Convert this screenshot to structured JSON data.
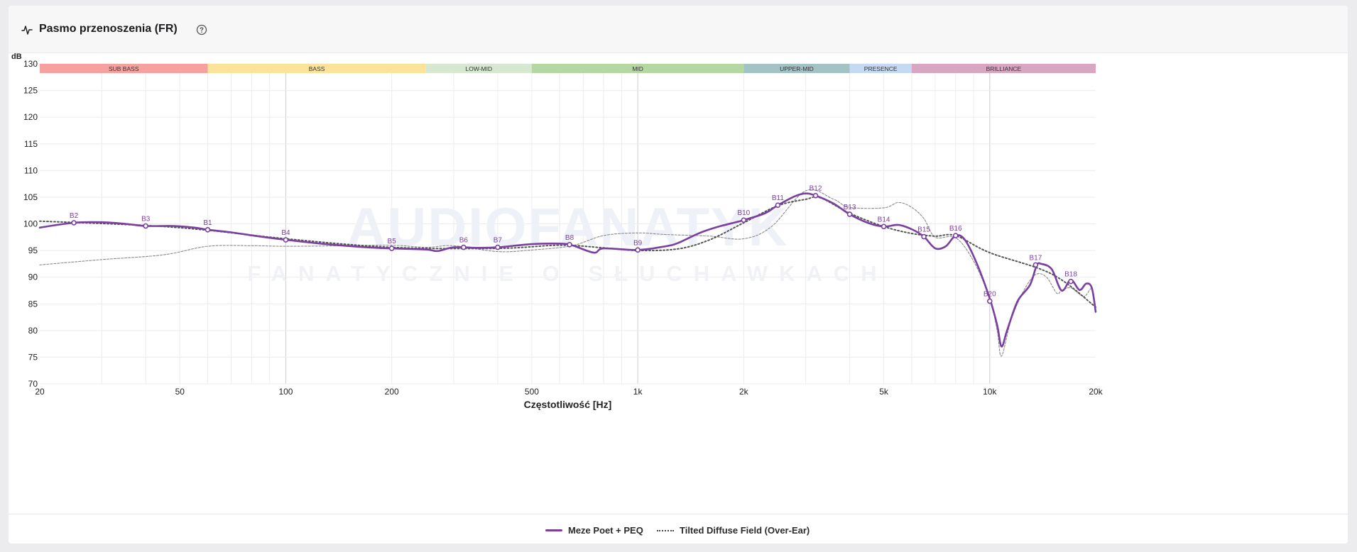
{
  "header": {
    "title": "Pasmo przenoszenia (FR)",
    "icons": [
      "pulse-icon",
      "help-circle-icon"
    ]
  },
  "watermark": {
    "main": "AUDIOFANATYK",
    "sub": "FANATYCZNIE O SŁUCHAWKACH"
  },
  "chart_data": {
    "type": "line",
    "xscale": "log",
    "xlim": [
      20,
      20000
    ],
    "ylim": [
      70,
      130
    ],
    "xlabel": "Częstotliwość [Hz]",
    "ylabel": "dB",
    "yticks": [
      70,
      75,
      80,
      85,
      90,
      95,
      100,
      105,
      110,
      115,
      120,
      125,
      130
    ],
    "xticks": [
      {
        "v": 20,
        "label": "20"
      },
      {
        "v": 50,
        "label": "50"
      },
      {
        "v": 100,
        "label": "100"
      },
      {
        "v": 200,
        "label": "200"
      },
      {
        "v": 500,
        "label": "500"
      },
      {
        "v": 1000,
        "label": "1k"
      },
      {
        "v": 2000,
        "label": "2k"
      },
      {
        "v": 5000,
        "label": "5k"
      },
      {
        "v": 10000,
        "label": "10k"
      },
      {
        "v": 20000,
        "label": "20k"
      }
    ],
    "bands": [
      {
        "label": "SUB BASS",
        "from": 20,
        "to": 60,
        "color": "#f7a0a0"
      },
      {
        "label": "BASS",
        "from": 60,
        "to": 250,
        "color": "#fbe39a"
      },
      {
        "label": "LOW-MID",
        "from": 250,
        "to": 500,
        "color": "#d6e8cf"
      },
      {
        "label": "MID",
        "from": 500,
        "to": 2000,
        "color": "#b5d7a1"
      },
      {
        "label": "UPPER-MID",
        "from": 2000,
        "to": 4000,
        "color": "#a3c2c4"
      },
      {
        "label": "PRESENCE",
        "from": 4000,
        "to": 6000,
        "color": "#c6d9f3"
      },
      {
        "label": "BRILLIANCE",
        "from": 6000,
        "to": 20000,
        "color": "#d8a6c0"
      }
    ],
    "legend_position": "bottom-center",
    "series": [
      {
        "name": "Meze Poet + PEQ",
        "style": "solid",
        "color": "#7b3fa0",
        "points": [
          [
            20,
            99.3
          ],
          [
            25,
            100.2
          ],
          [
            30,
            100.3
          ],
          [
            35,
            100.0
          ],
          [
            40,
            99.6
          ],
          [
            48,
            99.6
          ],
          [
            55,
            99.3
          ],
          [
            60,
            98.9
          ],
          [
            70,
            98.4
          ],
          [
            85,
            97.6
          ],
          [
            100,
            97.0
          ],
          [
            130,
            96.2
          ],
          [
            170,
            95.6
          ],
          [
            200,
            95.4
          ],
          [
            250,
            95.2
          ],
          [
            270,
            94.9
          ],
          [
            300,
            95.6
          ],
          [
            350,
            95.5
          ],
          [
            400,
            95.6
          ],
          [
            500,
            96.2
          ],
          [
            600,
            96.3
          ],
          [
            650,
            96.0
          ],
          [
            750,
            94.6
          ],
          [
            800,
            95.4
          ],
          [
            1000,
            95.1
          ],
          [
            1200,
            95.8
          ],
          [
            1300,
            96.4
          ],
          [
            1500,
            98.3
          ],
          [
            1700,
            99.5
          ],
          [
            2000,
            100.7
          ],
          [
            2300,
            102.0
          ],
          [
            2500,
            103.5
          ],
          [
            2800,
            105.2
          ],
          [
            3000,
            105.7
          ],
          [
            3200,
            105.3
          ],
          [
            3600,
            103.8
          ],
          [
            4000,
            101.8
          ],
          [
            4500,
            100.2
          ],
          [
            5000,
            99.5
          ],
          [
            5500,
            99.8
          ],
          [
            6000,
            99.0
          ],
          [
            6500,
            97.6
          ],
          [
            7000,
            95.4
          ],
          [
            7500,
            95.8
          ],
          [
            8000,
            97.8
          ],
          [
            8500,
            97.0
          ],
          [
            9200,
            92.5
          ],
          [
            10000,
            86.0
          ],
          [
            10500,
            81.0
          ],
          [
            10800,
            77.0
          ],
          [
            11200,
            80.0
          ],
          [
            12000,
            85.5
          ],
          [
            13000,
            88.5
          ],
          [
            13600,
            92.2
          ],
          [
            14000,
            92.5
          ],
          [
            15000,
            91.5
          ],
          [
            16000,
            87.5
          ],
          [
            17000,
            89.5
          ],
          [
            18000,
            87.6
          ],
          [
            18800,
            88.8
          ],
          [
            19500,
            88.0
          ],
          [
            20000,
            83.5
          ]
        ]
      },
      {
        "name": "Tilted Diffuse Field (Over-Ear)",
        "style": "dotted",
        "color": "#555555",
        "points": [
          [
            20,
            100.5
          ],
          [
            40,
            99.7
          ],
          [
            60,
            98.8
          ],
          [
            100,
            97.2
          ],
          [
            200,
            95.6
          ],
          [
            400,
            95.4
          ],
          [
            600,
            96.0
          ],
          [
            800,
            95.5
          ],
          [
            1000,
            95.0
          ],
          [
            1300,
            95.3
          ],
          [
            1600,
            97.0
          ],
          [
            2000,
            100.2
          ],
          [
            2500,
            103.4
          ],
          [
            3000,
            104.6
          ],
          [
            3300,
            104.9
          ],
          [
            4000,
            102.0
          ],
          [
            5000,
            99.5
          ],
          [
            6000,
            98.2
          ],
          [
            7000,
            97.7
          ],
          [
            8000,
            97.8
          ],
          [
            10000,
            94.6
          ],
          [
            15000,
            90.6
          ],
          [
            20000,
            84.4
          ]
        ]
      },
      {
        "name": "",
        "style": "thin-dashed",
        "color": "#8a8a8a",
        "points": [
          [
            20,
            92.3
          ],
          [
            30,
            93.3
          ],
          [
            45,
            94.2
          ],
          [
            60,
            95.8
          ],
          [
            80,
            95.9
          ],
          [
            100,
            95.8
          ],
          [
            150,
            95.9
          ],
          [
            200,
            96.0
          ],
          [
            250,
            95.6
          ],
          [
            300,
            95.9
          ],
          [
            400,
            94.8
          ],
          [
            500,
            95.1
          ],
          [
            650,
            95.9
          ],
          [
            800,
            97.8
          ],
          [
            1000,
            98.3
          ],
          [
            1200,
            98.0
          ],
          [
            1600,
            97.7
          ],
          [
            2000,
            97.2
          ],
          [
            2400,
            99.5
          ],
          [
            3000,
            106.2
          ],
          [
            3600,
            104.6
          ],
          [
            4000,
            103.1
          ],
          [
            5000,
            103.0
          ],
          [
            5500,
            104.0
          ],
          [
            6000,
            103.1
          ],
          [
            6500,
            101.0
          ],
          [
            7000,
            97.5
          ],
          [
            8000,
            97.4
          ],
          [
            9000,
            93.0
          ],
          [
            10000,
            86.0
          ],
          [
            10500,
            80.0
          ],
          [
            10800,
            75.2
          ],
          [
            11500,
            82.0
          ],
          [
            12500,
            87.5
          ],
          [
            13500,
            90.5
          ],
          [
            14500,
            90.0
          ],
          [
            15500,
            87.0
          ],
          [
            16000,
            87.5
          ],
          [
            17000,
            88.0
          ],
          [
            18500,
            86.4
          ],
          [
            19500,
            87.8
          ],
          [
            20000,
            84.0
          ]
        ]
      }
    ],
    "markers": [
      {
        "label": "B2",
        "f": 25,
        "db": 100.2
      },
      {
        "label": "B3",
        "f": 40,
        "db": 99.6
      },
      {
        "label": "B1",
        "f": 60,
        "db": 98.9
      },
      {
        "label": "B4",
        "f": 100,
        "db": 97.0
      },
      {
        "label": "B5",
        "f": 200,
        "db": 95.4
      },
      {
        "label": "B6",
        "f": 320,
        "db": 95.6
      },
      {
        "label": "B7",
        "f": 400,
        "db": 95.6
      },
      {
        "label": "B8",
        "f": 640,
        "db": 96.1
      },
      {
        "label": "B9",
        "f": 1000,
        "db": 95.1
      },
      {
        "label": "B10",
        "f": 2000,
        "db": 100.7
      },
      {
        "label": "B11",
        "f": 2500,
        "db": 103.5
      },
      {
        "label": "B12",
        "f": 3200,
        "db": 105.3
      },
      {
        "label": "B13",
        "f": 4000,
        "db": 101.8
      },
      {
        "label": "B14",
        "f": 5000,
        "db": 99.5
      },
      {
        "label": "B15",
        "f": 6500,
        "db": 97.6
      },
      {
        "label": "B16",
        "f": 8000,
        "db": 97.8
      },
      {
        "label": "B17",
        "f": 13500,
        "db": 92.3
      },
      {
        "label": "B18",
        "f": 17000,
        "db": 89.2
      },
      {
        "label": "B20",
        "f": 10000,
        "db": 85.5
      }
    ]
  },
  "legend": {
    "items": [
      {
        "label": "Meze Poet + PEQ"
      },
      {
        "label": "Tilted Diffuse Field (Over-Ear)"
      }
    ]
  }
}
